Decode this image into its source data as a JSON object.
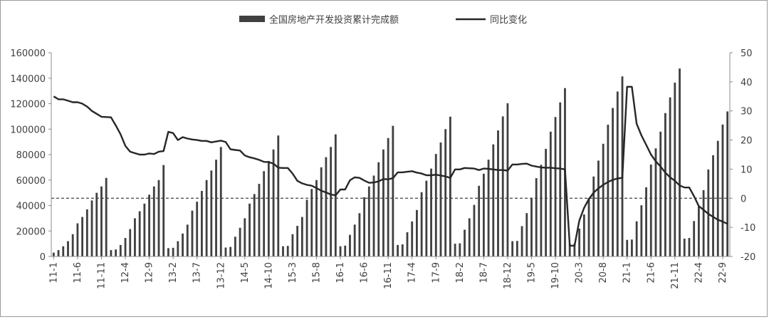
{
  "chart_data": {
    "type": "bar+line",
    "legend": {
      "placement": "top-center",
      "bar_label": "全国房地产开发投资累计完成额",
      "line_label": "同比变化"
    },
    "x_labels": [
      "11-1",
      "11-6",
      "11-11",
      "12-4",
      "12-9",
      "13-2",
      "13-7",
      "13-12",
      "14-5",
      "14-10",
      "15-3",
      "15-8",
      "16-1",
      "16-6",
      "16-11",
      "17-4",
      "17-9",
      "18-2",
      "18-7",
      "18-12",
      "19-5",
      "19-10",
      "20-3",
      "20-8",
      "21-1",
      "21-6",
      "21-11",
      "22-4",
      "22-9"
    ],
    "y_left": {
      "min": 0,
      "max": 160000,
      "ticks": [
        "0",
        "20000",
        "40000",
        "60000",
        "80000",
        "100000",
        "120000",
        "140000",
        "160000"
      ]
    },
    "y_right": {
      "min": -20,
      "max": 50,
      "ticks": [
        "-20",
        "-10",
        "0",
        "10",
        "20",
        "30",
        "40",
        "50"
      ]
    },
    "bar_color": "#404040",
    "line_color": "#262626",
    "zero_line_color": "#404040",
    "months": [
      {
        "year": 2011,
        "investment": [
          3000,
          5000,
          8000,
          12000,
          17500,
          26000,
          31000,
          37000,
          44000,
          50000,
          55000,
          61700
        ],
        "yoy": [
          35,
          34,
          34,
          33.5,
          33,
          33,
          32.5,
          31.5,
          30,
          29,
          28,
          27.9
        ]
      },
      {
        "year": 2012,
        "investment": [
          5000,
          5500,
          9000,
          14500,
          21500,
          30000,
          35500,
          41500,
          48500,
          55000,
          60000,
          71800
        ],
        "yoy": [
          27.8,
          25,
          22,
          18,
          16,
          15.5,
          15,
          15,
          15.4,
          15.2,
          16,
          16.2
        ]
      },
      {
        "year": 2013,
        "investment": [
          6500,
          6800,
          12000,
          18000,
          25000,
          36000,
          43000,
          51500,
          60000,
          67500,
          76000,
          86000
        ],
        "yoy": [
          22.8,
          22.4,
          20,
          21,
          20.5,
          20.2,
          20,
          19.7,
          19.7,
          19.2,
          19.5,
          19.8
        ]
      },
      {
        "year": 2014,
        "investment": [
          7000,
          7500,
          15500,
          22500,
          30000,
          41500,
          49000,
          57000,
          67000,
          75000,
          84000,
          95000
        ],
        "yoy": [
          19.3,
          16.8,
          16.6,
          16.4,
          14.7,
          14.1,
          13.7,
          13.2,
          12.5,
          12.4,
          11.9,
          10.5
        ]
      },
      {
        "year": 2015,
        "investment": [
          8000,
          8300,
          17500,
          24000,
          31000,
          44500,
          53000,
          60000,
          70000,
          78000,
          86000,
          95900
        ],
        "yoy": [
          10.4,
          10.4,
          8.5,
          6,
          5.1,
          4.6,
          4.3,
          3.5,
          2.6,
          2,
          1.3,
          1
        ]
      },
      {
        "year": 2016,
        "investment": [
          8000,
          8500,
          17000,
          25000,
          34000,
          46500,
          55000,
          63500,
          74000,
          84000,
          93000,
          102600
        ],
        "yoy": [
          3,
          3,
          6.2,
          7.2,
          7,
          6.1,
          5.3,
          5.4,
          5.8,
          6.6,
          6.5,
          6.9
        ]
      },
      {
        "year": 2017,
        "investment": [
          9000,
          9500,
          19000,
          27500,
          36500,
          50500,
          59500,
          69000,
          80500,
          89500,
          100000,
          109800
        ],
        "yoy": [
          8.9,
          8.9,
          9.1,
          9.3,
          8.8,
          8.5,
          7.9,
          7.9,
          8.1,
          7.8,
          7.5,
          7
        ]
      },
      {
        "year": 2018,
        "investment": [
          10000,
          10300,
          21000,
          30000,
          40500,
          55500,
          65000,
          76000,
          88000,
          99000,
          110000,
          120300
        ],
        "yoy": [
          9.9,
          9.9,
          10.4,
          10.3,
          10.2,
          9.7,
          10.2,
          10.1,
          9.9,
          9.7,
          9.7,
          9.5
        ]
      },
      {
        "year": 2019,
        "investment": [
          12000,
          12200,
          23800,
          34000,
          46000,
          61500,
          72000,
          84500,
          98000,
          109500,
          121000,
          132200
        ],
        "yoy": [
          11.6,
          11.6,
          11.8,
          11.9,
          11.2,
          10.9,
          10.6,
          10.5,
          10.5,
          10.3,
          10.2,
          9.9
        ]
      },
      {
        "year": 2020,
        "investment": [
          10000,
          10100,
          21900,
          33000,
          45900,
          62800,
          75300,
          88500,
          103500,
          116600,
          129500,
          141400
        ],
        "yoy": [
          -16.3,
          -16.3,
          -7.7,
          -3.3,
          -0.3,
          1.9,
          3.4,
          4.6,
          5.6,
          6.3,
          6.8,
          7
        ]
      },
      {
        "year": 2021,
        "investment": [
          13000,
          13300,
          27600,
          40200,
          54300,
          72200,
          84900,
          98000,
          112600,
          124900,
          136500,
          147600
        ],
        "yoy": [
          38.3,
          38.3,
          25.6,
          21.6,
          18.3,
          15,
          12.7,
          10.9,
          8.8,
          7.2,
          6,
          4.4
        ]
      },
      {
        "year": 2022,
        "investment": [
          14000,
          14500,
          27800,
          39200,
          52100,
          68300,
          79500,
          90800,
          103600,
          113900
        ],
        "yoy": [
          3.7,
          3.7,
          0.7,
          -2.7,
          -4,
          -5.4,
          -6.4,
          -7.4,
          -8,
          -8.8
        ]
      }
    ]
  }
}
